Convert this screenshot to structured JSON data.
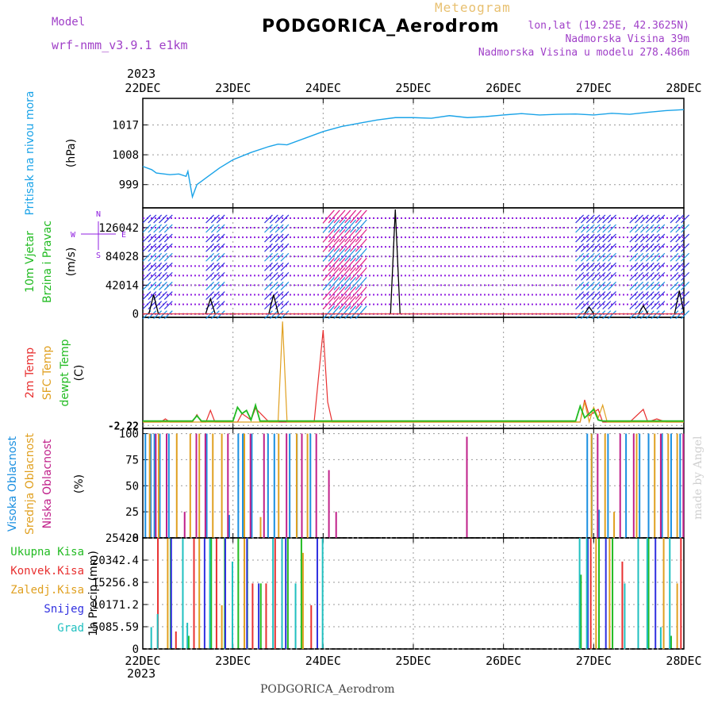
{
  "header": {
    "model_label": "Model",
    "model_name": "wrf-nmm_v3.9.1 e1km",
    "chart_kind": "Meteogram",
    "station": "PODGORICA_Aerodrom",
    "lonlat": "lon,lat (19.25E, 42.3625N)",
    "elevation": "Nadmorska Visina 39m",
    "model_elevation": "Nadmorska Visina u modelu 278.486m",
    "year": "2023",
    "footer": "PODGORICA_Aerodrom",
    "credit": "made by Angel"
  },
  "colors": {
    "pressure": "#1aa3e8",
    "green": "#22bb22",
    "red": "#e83030",
    "orange": "#e0a020",
    "purple": "#c020a0",
    "blue": "#3030e0",
    "cyan": "#20c0c0",
    "wind_purple": "#9020e0",
    "wind_pink": "#e0208a",
    "high_cloud": "#1a8fe0",
    "mid_cloud": "#e0a020",
    "low_cloud": "#c0208a"
  },
  "chart_data": {
    "type": "line",
    "time_axis": {
      "labels": [
        "22DEC",
        "23DEC",
        "24DEC",
        "25DEC",
        "26DEC",
        "27DEC",
        "28DEC"
      ],
      "xlim": [
        0,
        6
      ],
      "unit": "days"
    },
    "panels": [
      {
        "id": "pressure",
        "ylabel": [
          "Pritisak na nivou mora",
          "(hPa)"
        ],
        "yticks": [
          "999",
          "1008",
          "1017"
        ],
        "ylim": [
          992,
          1025
        ],
        "grid": true,
        "series": [
          {
            "name": "Pritisak na nivou mora",
            "x": [
              0,
              0.1,
              0.15,
              0.3,
              0.4,
              0.48,
              0.5,
              0.55,
              0.6,
              0.65,
              0.7,
              0.85,
              1.0,
              1.2,
              1.4,
              1.5,
              1.6,
              1.8,
              2.0,
              2.2,
              2.4,
              2.6,
              2.8,
              3.0,
              3.2,
              3.4,
              3.6,
              3.8,
              4.0,
              4.2,
              4.4,
              4.6,
              4.8,
              5.0,
              5.2,
              5.4,
              5.6,
              5.8,
              6.0
            ],
            "y": [
              1004.5,
              1003.5,
              1002.5,
              1002.0,
              1002.2,
              1001.5,
              1003,
              995.3,
              999,
              1000,
              1001,
              1004,
              1006.5,
              1008.7,
              1010.5,
              1011.2,
              1011.0,
              1013,
              1015,
              1016.5,
              1017.5,
              1018.5,
              1019.2,
              1019.2,
              1019,
              1019.8,
              1019.2,
              1019.5,
              1020.0,
              1020.4,
              1020,
              1020.2,
              1020.3,
              1020.0,
              1020.5,
              1020.2,
              1020.8,
              1021.3,
              1021.6
            ]
          }
        ]
      },
      {
        "id": "wind",
        "ylabel": [
          "10m Vjetar",
          "Brzina i Pravac",
          "(m/s)"
        ],
        "compass": [
          "N",
          "W",
          "E",
          "S"
        ],
        "yticks": [
          "0",
          "42014",
          "84028",
          "126042"
        ],
        "ylim": [
          -5000,
          155000
        ],
        "grid": true,
        "dotted_levels": [
          0,
          14000,
          28000,
          42000,
          56000,
          70000,
          84000,
          98000,
          112000,
          126000,
          140000
        ],
        "spike_days": [
          0.12,
          0.75,
          1.45,
          2.8,
          4.95,
          5.55,
          5.95
        ],
        "spike_heights": [
          28000,
          22000,
          28000,
          155000,
          10000,
          12000,
          34000
        ],
        "barb_bands": [
          [
            0,
            0.25
          ],
          [
            0.7,
            0.85
          ],
          [
            1.35,
            1.55
          ],
          [
            2.0,
            2.4
          ],
          [
            4.8,
            5.2
          ],
          [
            5.4,
            5.75
          ],
          [
            5.85,
            6.0
          ]
        ]
      },
      {
        "id": "temperature",
        "ylabel": [
          "2m Temp",
          "SFC Temp",
          "dewpt Temp",
          "(C)"
        ],
        "yticks": [
          "-2.22"
        ],
        "ylim": [
          -5,
          100
        ],
        "grid": true,
        "series": [
          {
            "name": "2m Temp",
            "x": [
              0,
              0.2,
              0.25,
              0.3,
              0.55,
              0.6,
              0.65,
              0.7,
              0.75,
              0.8,
              1.05,
              1.1,
              1.2,
              1.25,
              1.4,
              1.5,
              1.9,
              2.0,
              2.05,
              2.1,
              4.85,
              4.9,
              4.95,
              5.05,
              5.1,
              5.4,
              5.55,
              5.6,
              5.7,
              5.8,
              6.0
            ],
            "y": [
              1,
              1,
              4,
              1,
              1,
              8,
              1,
              1,
              12,
              1,
              1,
              9,
              3,
              14,
              1,
              1,
              1,
              88,
              20,
              1,
              1,
              22,
              7,
              13,
              1,
              1,
              13,
              1,
              4,
              1,
              1
            ]
          },
          {
            "name": "SFC Temp",
            "x": [
              0,
              1.5,
              1.55,
              1.6,
              1.65,
              4.85,
              4.9,
              4.95,
              5.0,
              5.05,
              5.1,
              5.15,
              6.0
            ],
            "y": [
              1,
              1,
              96,
              1,
              1,
              1,
              20,
              1,
              15,
              5,
              17,
              1,
              1
            ]
          },
          {
            "name": "dewpt Temp",
            "x": [
              0,
              0.55,
              0.6,
              0.65,
              1.0,
              1.05,
              1.1,
              1.15,
              1.2,
              1.25,
              1.3,
              4.8,
              4.85,
              4.9,
              5.0,
              5.05,
              5.1,
              6.0
            ],
            "y": [
              2,
              2,
              7,
              2,
              2,
              15,
              9,
              12,
              3,
              17,
              2,
              2,
              16,
              5,
              13,
              3,
              2,
              2
            ]
          }
        ]
      },
      {
        "id": "cloud",
        "ylabel": [
          "Visoka Oblacnost",
          "Srednja Oblacnost",
          "Niska Oblacnost",
          "(%)"
        ],
        "yticks": [
          "0",
          "25",
          "50",
          "75",
          "100"
        ],
        "ylim": [
          0,
          105
        ],
        "grid": true,
        "series": [
          {
            "name": "Visoka Oblacnost",
            "x": [
              0.02,
              0.08,
              0.12,
              0.18,
              0.28,
              0.7,
              0.95,
              1.05,
              1.1,
              1.2,
              1.38,
              1.45,
              1.62,
              1.7,
              1.85,
              4.92,
              4.97,
              5.05,
              5.15,
              5.35,
              5.5,
              5.6,
              5.75,
              5.85,
              5.95
            ],
            "y": [
              100,
              100,
              100,
              100,
              100,
              100,
              22,
              100,
              100,
              100,
              100,
              100,
              100,
              100,
              100,
              100,
              100,
              27,
              100,
              100,
              100,
              100,
              100,
              100,
              100
            ]
          },
          {
            "name": "Srednja Oblacnost",
            "x": [
              0.05,
              0.15,
              0.35,
              0.5,
              0.6,
              0.75,
              0.85,
              1.1,
              1.28,
              1.48,
              1.68,
              1.8,
              4.95,
              5.1,
              5.2,
              5.45,
              5.65,
              5.8,
              5.9
            ],
            "y": [
              100,
              100,
              100,
              100,
              100,
              100,
              100,
              100,
              20,
              100,
              100,
              100,
              100,
              100,
              25,
              100,
              100,
              100,
              100
            ]
          },
          {
            "name": "Niska Oblacnost",
            "x": [
              0.1,
              0.22,
              0.42,
              0.55,
              0.65,
              0.9,
              1.15,
              1.3,
              1.55,
              1.72,
              1.88,
              2.02,
              2.1,
              3.55,
              5.0,
              5.25,
              5.4,
              5.7,
              5.95
            ],
            "y": [
              100,
              100,
              25,
              100,
              100,
              100,
              100,
              100,
              100,
              100,
              100,
              65,
              25,
              97,
              100,
              100,
              100,
              100,
              100
            ]
          }
        ]
      },
      {
        "id": "precip",
        "ylabel": [
          "1h Precip",
          "(mm)"
        ],
        "legend": [
          "Ukupna Kisa",
          "Konvek.Kisa",
          "Zaledj.Kisa",
          "Snijeg",
          "Grad"
        ],
        "yticks": [
          "0",
          "5085.59",
          "10171.2",
          "15256.8",
          "20342.4",
          "25428"
        ],
        "ylim": [
          0,
          25428
        ],
        "grid": true,
        "series": [
          {
            "name": "Ukupna Kisa",
            "x": [
              0.3,
              0.5,
              0.75,
              0.9,
              1.05,
              1.15,
              1.3,
              1.6,
              1.75,
              4.85,
              5.05,
              5.2,
              5.6,
              5.85
            ],
            "y": [
              25428,
              3000,
              25428,
              25428,
              25428,
              25428,
              15000,
              25428,
              25428,
              17000,
              25428,
              25428,
              25428,
              3000
            ]
          },
          {
            "name": "Konvek.Kisa",
            "x": [
              0.15,
              0.35,
              0.55,
              0.8,
              1.2,
              1.35,
              1.45,
              1.85,
              4.95,
              5.3,
              5.95
            ],
            "y": [
              25428,
              4000,
              25428,
              25428,
              15000,
              15000,
              25428,
              10000,
              25428,
              20000,
              25428
            ]
          },
          {
            "name": "Zaledj.Kisa",
            "x": [
              0.25,
              0.6,
              0.85,
              1.1,
              1.75,
              5.0,
              5.15,
              5.75,
              5.9
            ],
            "y": [
              25428,
              25428,
              10000,
              25428,
              22000,
              25428,
              25428,
              25428,
              15000
            ]
          },
          {
            "name": "Snijeg",
            "x": [
              0.28,
              0.65,
              0.88,
              1.12,
              1.25,
              1.55,
              1.9,
              4.9,
              5.1,
              5.65
            ],
            "y": [
              25428,
              25428,
              25428,
              25428,
              15000,
              25428,
              25428,
              25428,
              25428,
              25428
            ]
          },
          {
            "name": "Grad",
            "x": [
              0.05,
              0.12,
              0.4,
              0.45,
              0.7,
              0.95,
              1.4,
              1.5,
              1.65,
              1.95,
              4.8,
              4.88,
              5.3,
              5.45,
              5.55,
              5.7,
              5.8
            ],
            "y": [
              5000,
              8000,
              25428,
              6000,
              25428,
              20000,
              25428,
              25428,
              15000,
              25428,
              25428,
              25428,
              15000,
              25428,
              25428,
              5000,
              25428
            ]
          }
        ]
      }
    ]
  }
}
